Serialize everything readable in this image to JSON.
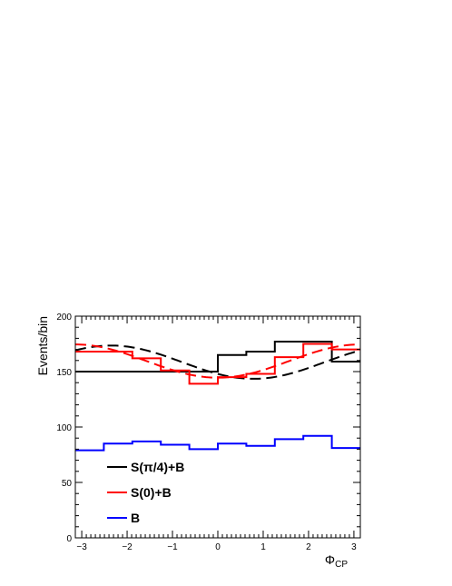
{
  "chart_data": {
    "type": "line",
    "title": "",
    "xlabel": "Φ",
    "xlabel_sub": "CP",
    "ylabel": "Events/bin",
    "xlim": [
      -3.14159,
      3.14159
    ],
    "ylim": [
      0,
      200
    ],
    "x_ticks": [
      -3,
      -2,
      -1,
      0,
      1,
      2,
      3
    ],
    "x_tick_labels": [
      "−3",
      "−2",
      "−1",
      "0",
      "1",
      "2",
      "3"
    ],
    "y_ticks": [
      0,
      50,
      100,
      150,
      200
    ],
    "y_tick_labels": [
      "0",
      "50",
      "100",
      "150",
      "200"
    ],
    "bin_edges": [
      -3.14159,
      -2.51327,
      -1.88496,
      -1.25664,
      -0.62832,
      0,
      0.62832,
      1.25664,
      1.88496,
      2.51327,
      3.14159
    ],
    "grid": false,
    "legend_position": "bottom-left",
    "series": [
      {
        "name": "S(π/4)+B",
        "color": "#000000",
        "style": "histogram",
        "values": [
          150,
          150,
          150,
          150,
          150,
          165,
          168,
          177,
          177,
          159
        ],
        "fit": {
          "color": "#000000",
          "dash": "dashed",
          "offset": 158.5,
          "amplitude": 15,
          "phase": 0.785
        }
      },
      {
        "name": "S(0)+B",
        "color": "#ff0000",
        "style": "histogram",
        "values": [
          168,
          168,
          162,
          151,
          139,
          145,
          148,
          163,
          175,
          170
        ],
        "fit": {
          "color": "#ff0000",
          "dash": "dashed",
          "offset": 159.5,
          "amplitude": 15,
          "phase": 0
        }
      },
      {
        "name": "B",
        "color": "#0000ff",
        "style": "histogram",
        "values": [
          79,
          85,
          87,
          84,
          80,
          85,
          83,
          89,
          92,
          81
        ]
      }
    ]
  }
}
